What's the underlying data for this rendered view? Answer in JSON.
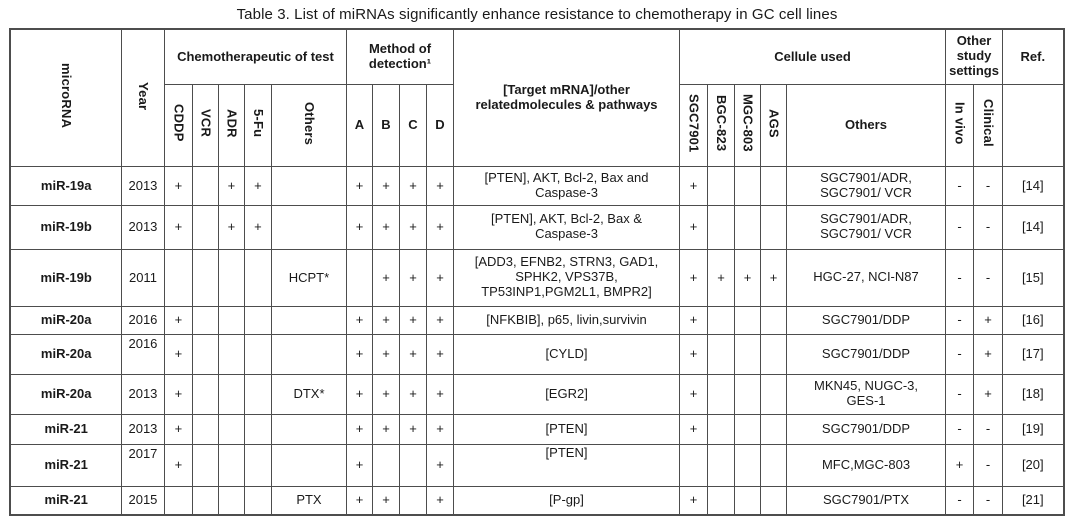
{
  "title": "Table 3. List of miRNAs significantly enhance resistance to chemotherapy in GC cell lines",
  "colors": {
    "text": "#1a1a1a",
    "border": "#4d4d4d",
    "background": "#ffffff"
  },
  "header": {
    "microrna": "microRNA",
    "year": "Year",
    "chemo_group": "Chemotherapeutic of test",
    "chemo_cols": [
      "CDDP",
      "VCR",
      "ADR",
      "5-Fu",
      "Others"
    ],
    "method_group": "Method of detection¹",
    "method_cols": [
      "A",
      "B",
      "C",
      "D"
    ],
    "target": "[Target mRNA]/other relatedmolecules & pathways",
    "cellule_group": "Cellule used",
    "cellule_cols": [
      "SGC7901",
      "BGC-823",
      "MGC-803",
      "AGS",
      "Others"
    ],
    "other_group": "Other study settings",
    "other_cols": [
      "In vivo",
      "Clinical"
    ],
    "ref": "Ref."
  },
  "rows": [
    {
      "mirna": "miR-19a",
      "year": "2013",
      "cddp": "+",
      "vcr": "",
      "adr": "+",
      "fu": "+",
      "others_chemo": "",
      "a": "+",
      "b": "+",
      "c": "+",
      "d": "+",
      "target": "[PTEN], AKT, Bcl-2, Bax and\nCaspase-3",
      "sgc": "+",
      "bgc": "",
      "mgc": "",
      "ags": "",
      "others_cells": "SGC7901/ADR,\nSGC7901/ VCR",
      "invivo": "-",
      "clinical": "-",
      "ref": "[14]"
    },
    {
      "mirna": "miR-19b",
      "year": "2013",
      "cddp": "+",
      "vcr": "",
      "adr": "+",
      "fu": "+",
      "others_chemo": "",
      "a": "+",
      "b": "+",
      "c": "+",
      "d": "+",
      "target": "[PTEN], AKT, Bcl-2, Bax &\nCaspase-3",
      "sgc": "+",
      "bgc": "",
      "mgc": "",
      "ags": "",
      "others_cells": "SGC7901/ADR,\nSGC7901/ VCR",
      "invivo": "-",
      "clinical": "-",
      "ref": "[14]"
    },
    {
      "mirna": "miR-19b",
      "year": "2011",
      "cddp": "",
      "vcr": "",
      "adr": "",
      "fu": "",
      "others_chemo": "HCPT*",
      "a": "",
      "b": "+",
      "c": "+",
      "d": "+",
      "target": "[ADD3, EFNB2, STRN3, GAD1,\nSPHK2, VPS37B,\nTP53INP1,PGM2L1, BMPR2]",
      "sgc": "+",
      "bgc": "+",
      "mgc": "+",
      "ags": "+",
      "others_cells": "HGC-27, NCI-N87",
      "invivo": "-",
      "clinical": "-",
      "ref": "[15]"
    },
    {
      "mirna": "miR-20a",
      "year": "2016",
      "cddp": "+",
      "vcr": "",
      "adr": "",
      "fu": "",
      "others_chemo": "",
      "a": "+",
      "b": "+",
      "c": "+",
      "d": "+",
      "target": "[NFKBIB], p65, livin,survivin",
      "sgc": "+",
      "bgc": "",
      "mgc": "",
      "ags": "",
      "others_cells": "SGC7901/DDP",
      "invivo": "-",
      "clinical": "+",
      "ref": "[16]"
    },
    {
      "mirna": "miR-20a",
      "year": "2016",
      "cddp": "+",
      "vcr": "",
      "adr": "",
      "fu": "",
      "others_chemo": "",
      "a": "+",
      "b": "+",
      "c": "+",
      "d": "+",
      "target": "[CYLD]",
      "sgc": "+",
      "bgc": "",
      "mgc": "",
      "ags": "",
      "others_cells": "SGC7901/DDP",
      "invivo": "-",
      "clinical": "+",
      "ref": "[17]",
      "valign_top": [
        "year"
      ]
    },
    {
      "mirna": "miR-20a",
      "year": "2013",
      "cddp": "+",
      "vcr": "",
      "adr": "",
      "fu": "",
      "others_chemo": "DTX*",
      "a": "+",
      "b": "+",
      "c": "+",
      "d": "+",
      "target": "[EGR2]",
      "sgc": "+",
      "bgc": "",
      "mgc": "",
      "ags": "",
      "others_cells": "MKN45, NUGC-3,\nGES-1",
      "invivo": "-",
      "clinical": "+",
      "ref": "[18]"
    },
    {
      "mirna": "miR-21",
      "year": "2013",
      "cddp": "+",
      "vcr": "",
      "adr": "",
      "fu": "",
      "others_chemo": "",
      "a": "+",
      "b": "+",
      "c": "+",
      "d": "+",
      "target": "[PTEN]",
      "sgc": "+",
      "bgc": "",
      "mgc": "",
      "ags": "",
      "others_cells": "SGC7901/DDP",
      "invivo": "-",
      "clinical": "-",
      "ref": "[19]"
    },
    {
      "mirna": "miR-21",
      "year": "2017",
      "cddp": "+",
      "vcr": "",
      "adr": "",
      "fu": "",
      "others_chemo": "",
      "a": "+",
      "b": "",
      "c": "",
      "d": "+",
      "target": "[PTEN]",
      "sgc": "",
      "bgc": "",
      "mgc": "",
      "ags": "",
      "others_cells": "MFC,MGC-803",
      "invivo": "+",
      "clinical": "-",
      "ref": "[20]",
      "valign_top": [
        "year",
        "target"
      ]
    },
    {
      "mirna": "miR-21",
      "year": "2015",
      "cddp": "",
      "vcr": "",
      "adr": "",
      "fu": "",
      "others_chemo": "PTX",
      "a": "+",
      "b": "+",
      "c": "",
      "d": "+",
      "target": "[P-gp]",
      "sgc": "+",
      "bgc": "",
      "mgc": "",
      "ags": "",
      "others_cells": "SGC7901/PTX",
      "invivo": "-",
      "clinical": "-",
      "ref": "[21]"
    }
  ]
}
